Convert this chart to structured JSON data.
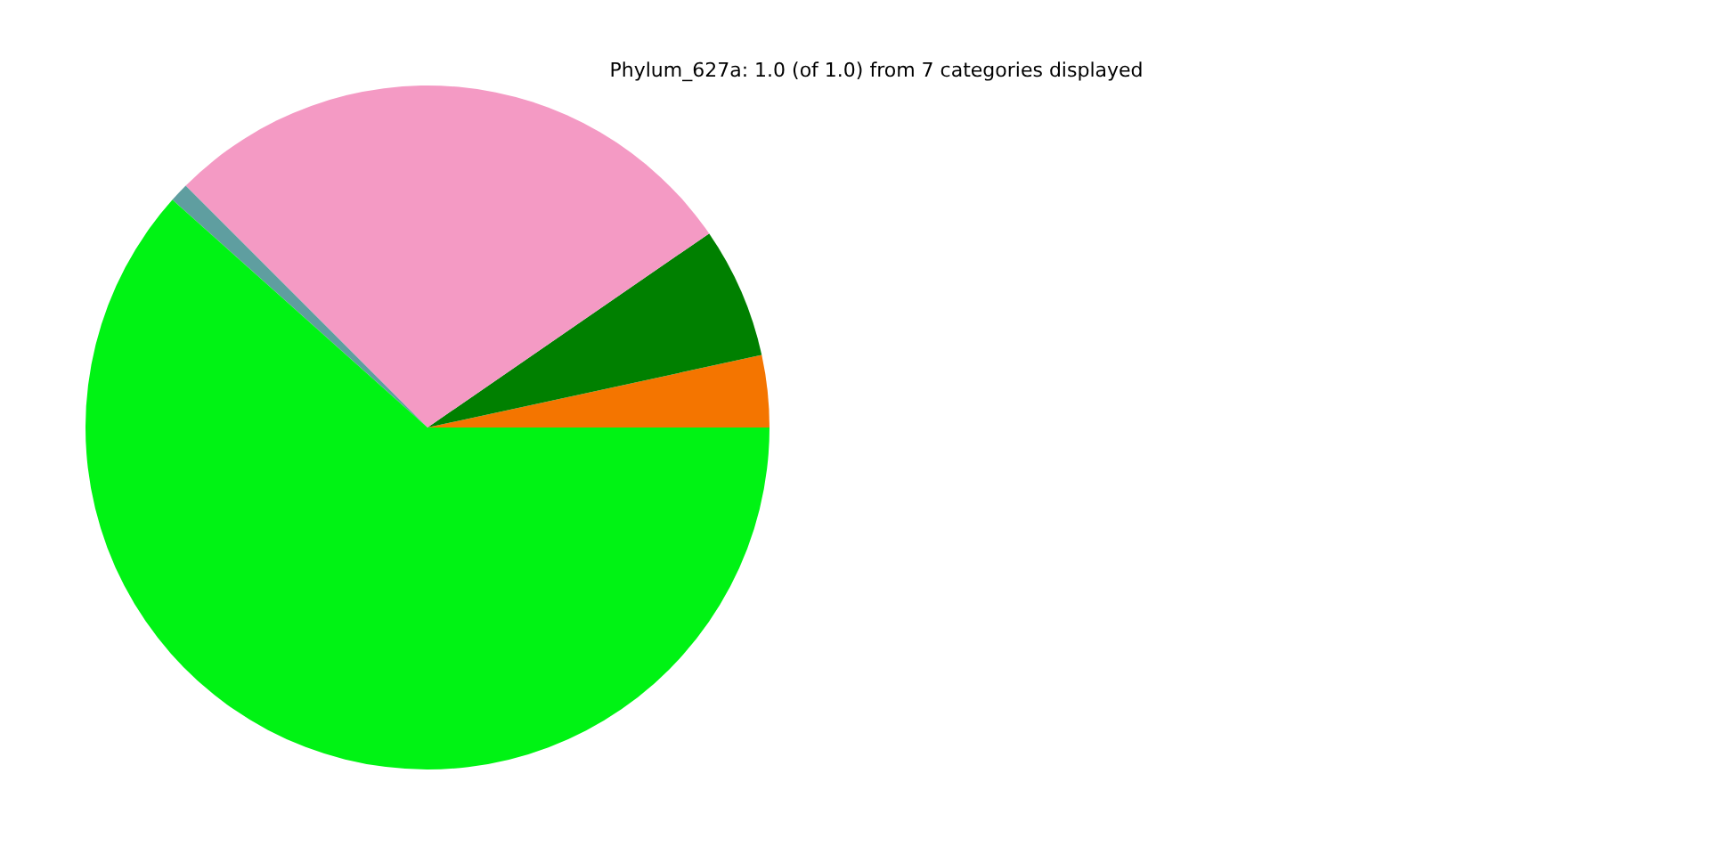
{
  "chart_data": {
    "type": "pie",
    "title": "Phylum_627a: 1.0 (of 1.0) from 7 categories displayed",
    "categories": [
      null,
      null,
      null,
      null,
      null
    ],
    "values": [
      3.4,
      6.2,
      27.9,
      0.9,
      61.6
    ],
    "colors": [
      "#f47500",
      "#008000",
      "#f49ac4",
      "#5f9ea0",
      "#00f314"
    ]
  }
}
